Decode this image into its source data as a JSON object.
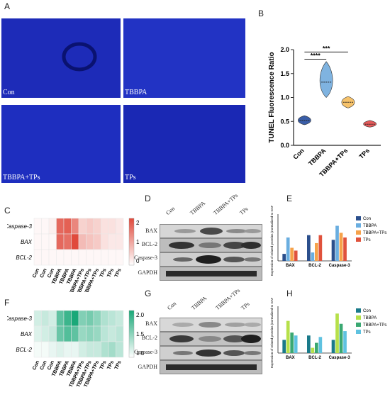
{
  "panels": {
    "A": "A",
    "B": "B",
    "C": "C",
    "D": "D",
    "E": "E",
    "F": "F",
    "G": "G",
    "H": "H"
  },
  "fluorescence": {
    "labels": [
      "Con",
      "TBBPA",
      "TBBPA+TPs",
      "TPs"
    ],
    "color": "#1f2fc0"
  },
  "chart_B": {
    "type": "violin",
    "ylabel": "TUNEL Fluorescence Ratio",
    "categories": [
      "Con",
      "TBBPA",
      "TBBPA+TPs",
      "TPs"
    ],
    "colors": [
      "#3a5ea8",
      "#7fb3e0",
      "#f6c26a",
      "#e55a5a"
    ],
    "medians": [
      0.52,
      1.32,
      0.9,
      0.44
    ],
    "ranges": [
      [
        0.43,
        0.62
      ],
      [
        1.0,
        1.75
      ],
      [
        0.78,
        1.02
      ],
      [
        0.38,
        0.52
      ]
    ],
    "ylim": [
      0,
      2.0
    ],
    "yticks": [
      "0.0",
      "0.5",
      "1.0",
      "1.5",
      "2.0"
    ],
    "sig": [
      "****",
      "***"
    ]
  },
  "heatmap_C": {
    "rows": [
      "Caspase-3",
      "BAX",
      "BCL-2"
    ],
    "cols": [
      "Con",
      "Con",
      "Con",
      "TBBPA",
      "TBBPA",
      "TBBPA",
      "TBBPA+TPs",
      "TBBPA+TPs",
      "TBBPA+TPs",
      "TPs",
      "TPs",
      "TPs"
    ],
    "values": [
      [
        0.1,
        0.1,
        0.2,
        2.0,
        2.1,
        1.6,
        0.6,
        0.7,
        0.6,
        0.4,
        0.4,
        0.3
      ],
      [
        0.1,
        0.1,
        0.1,
        2.0,
        1.9,
        2.4,
        0.9,
        0.8,
        0.7,
        0.4,
        0.3,
        0.3
      ],
      [
        0.1,
        0.1,
        0.1,
        0.1,
        0.1,
        0.1,
        0.1,
        0.1,
        0.1,
        0.1,
        0.1,
        0.1
      ]
    ],
    "scale_ticks": [
      "2",
      "1",
      "0"
    ],
    "color_hi": "#e04a3c"
  },
  "heatmap_F": {
    "rows": [
      "Caspase-3",
      "BAX",
      "BCL-2"
    ],
    "cols": [
      "Con",
      "Con",
      "Con",
      "TBBPA",
      "TBBPA",
      "TBBPA",
      "TBBPA+TPs",
      "TBBPA+TPs",
      "TBBPA+TPs",
      "TPs",
      "TPs",
      "TPs"
    ],
    "values": [
      [
        0.9,
        1.0,
        0.9,
        1.9,
        2.2,
        2.5,
        1.6,
        1.7,
        1.5,
        1.2,
        1.1,
        1.0
      ],
      [
        0.8,
        0.9,
        1.0,
        1.8,
        2.0,
        1.9,
        1.4,
        1.5,
        1.4,
        1.1,
        1.0,
        1.1
      ],
      [
        0.6,
        0.6,
        0.7,
        0.8,
        0.7,
        0.7,
        0.9,
        1.0,
        1.0,
        1.2,
        1.3,
        1.1
      ]
    ],
    "scale_ticks": [
      "2.0",
      "1.5",
      "1.0"
    ],
    "color_hi": "#1aa878"
  },
  "blot_D": {
    "cols": [
      "Con",
      "TBBPA",
      "TBBPA+TPs",
      "TPs"
    ],
    "rows": [
      "BAX",
      "BCL-2",
      "Caspase-3",
      "GAPDH"
    ]
  },
  "blot_G": {
    "cols": [
      "Con",
      "TBBPA",
      "TBBPA+TPs",
      "TPs"
    ],
    "rows": [
      "BAX",
      "BCL-2",
      "Caspase-3",
      "GAPDH"
    ]
  },
  "chart_E": {
    "type": "bar",
    "ylabel": "Expression of related proteins (normalized to GAPDH)",
    "categories": [
      "BAX",
      "BCL-2",
      "Caspase-3"
    ],
    "series": [
      {
        "name": "Con",
        "values": [
          0.15,
          0.55,
          0.45
        ],
        "color": "#2b4f8c"
      },
      {
        "name": "TBBPA",
        "values": [
          0.5,
          0.18,
          0.75
        ],
        "color": "#6aaee0"
      },
      {
        "name": "TBBPA+TPs",
        "values": [
          0.28,
          0.38,
          0.6
        ],
        "color": "#f6a24a"
      },
      {
        "name": "TPs",
        "values": [
          0.22,
          0.55,
          0.5
        ],
        "color": "#e0523c"
      }
    ],
    "ylim": [
      0,
      1.0
    ]
  },
  "chart_H": {
    "type": "bar",
    "ylabel": "Expression of related proteins (normalized to GAPDH)",
    "categories": [
      "BAX",
      "BCL-2",
      "Caspase-3"
    ],
    "series": [
      {
        "name": "Con",
        "values": [
          0.45,
          0.6,
          0.45
        ],
        "color": "#1a7a8a"
      },
      {
        "name": "TBBPA",
        "values": [
          1.1,
          0.18,
          1.35
        ],
        "color": "#b6e04a"
      },
      {
        "name": "TBBPA+TPs",
        "values": [
          0.7,
          0.35,
          1.0
        ],
        "color": "#3aa872"
      },
      {
        "name": "TPs",
        "values": [
          0.6,
          0.55,
          0.75
        ],
        "color": "#5fc2e0"
      }
    ],
    "ylim": [
      0,
      1.6
    ]
  }
}
